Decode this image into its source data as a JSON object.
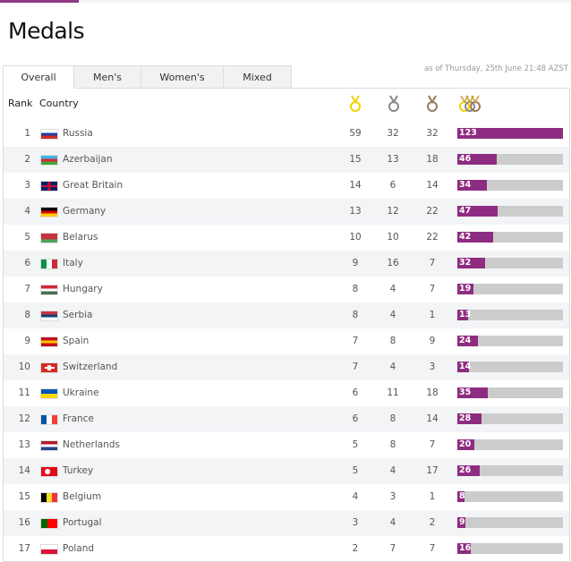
{
  "title": "Medals",
  "as_of": "as of Thursday, 25th June 21:48 AZST",
  "tabs": [
    "Overall",
    "Men's",
    "Women's",
    "Mixed"
  ],
  "headers": {
    "rank": "Rank",
    "country": "Country",
    "gold_icon": "gold-medal-icon",
    "silver_icon": "silver-medal-icon",
    "bronze_icon": "bronze-medal-icon",
    "total_icon": "total-medals-icon"
  },
  "colors": {
    "accent": "#8e2c81",
    "gold": "#f0d200",
    "silver": "#888888",
    "bronze": "#9a7a5a",
    "bar_bg": "#cccccc"
  },
  "max_total": 123,
  "rows": [
    {
      "rank": "1",
      "country": "Russia",
      "flag": "ru",
      "gold": 59,
      "silver": 32,
      "bronze": 32,
      "total": 123
    },
    {
      "rank": "2",
      "country": "Azerbaijan",
      "flag": "az",
      "gold": 15,
      "silver": 13,
      "bronze": 18,
      "total": 46
    },
    {
      "rank": "3",
      "country": "Great Britain",
      "flag": "gb",
      "gold": 14,
      "silver": 6,
      "bronze": 14,
      "total": 34
    },
    {
      "rank": "4",
      "country": "Germany",
      "flag": "de",
      "gold": 13,
      "silver": 12,
      "bronze": 22,
      "total": 47
    },
    {
      "rank": "5",
      "country": "Belarus",
      "flag": "by",
      "gold": 10,
      "silver": 10,
      "bronze": 22,
      "total": 42
    },
    {
      "rank": "6",
      "country": "Italy",
      "flag": "it",
      "gold": 9,
      "silver": 16,
      "bronze": 7,
      "total": 32
    },
    {
      "rank": "7",
      "country": "Hungary",
      "flag": "hu",
      "gold": 8,
      "silver": 4,
      "bronze": 7,
      "total": 19
    },
    {
      "rank": "8",
      "country": "Serbia",
      "flag": "rs",
      "gold": 8,
      "silver": 4,
      "bronze": 1,
      "total": 13
    },
    {
      "rank": "9",
      "country": "Spain",
      "flag": "es",
      "gold": 7,
      "silver": 8,
      "bronze": 9,
      "total": 24
    },
    {
      "rank": "10",
      "country": "Switzerland",
      "flag": "ch",
      "gold": 7,
      "silver": 4,
      "bronze": 3,
      "total": 14
    },
    {
      "rank": "11",
      "country": "Ukraine",
      "flag": "ua",
      "gold": 6,
      "silver": 11,
      "bronze": 18,
      "total": 35
    },
    {
      "rank": "12",
      "country": "France",
      "flag": "fr",
      "gold": 6,
      "silver": 8,
      "bronze": 14,
      "total": 28
    },
    {
      "rank": "13",
      "country": "Netherlands",
      "flag": "nl",
      "gold": 5,
      "silver": 8,
      "bronze": 7,
      "total": 20
    },
    {
      "rank": "14",
      "country": "Turkey",
      "flag": "tr",
      "gold": 5,
      "silver": 4,
      "bronze": 17,
      "total": 26
    },
    {
      "rank": "15",
      "country": "Belgium",
      "flag": "be",
      "gold": 4,
      "silver": 3,
      "bronze": 1,
      "total": 8
    },
    {
      "rank": "16",
      "country": "Portugal",
      "flag": "pt",
      "gold": 3,
      "silver": 4,
      "bronze": 2,
      "total": 9
    },
    {
      "rank": "17",
      "country": "Poland",
      "flag": "pl",
      "gold": 2,
      "silver": 7,
      "bronze": 7,
      "total": 16
    }
  ]
}
